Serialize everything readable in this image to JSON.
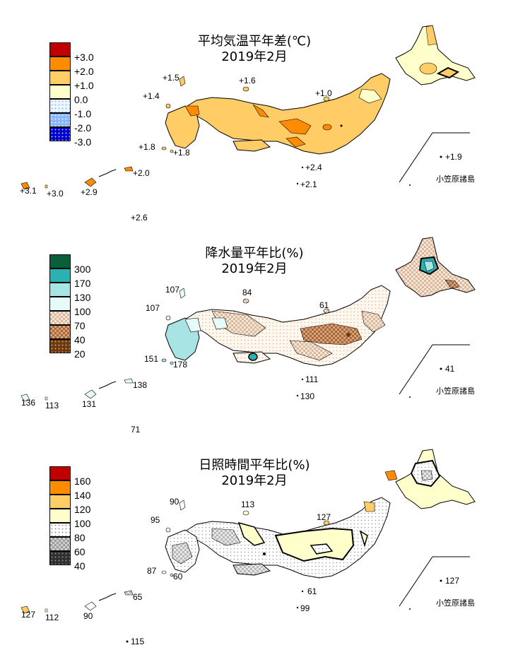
{
  "panels": [
    {
      "id": "temp",
      "title_line1": "平均気温平年差(℃)",
      "title_line2": "2019年2月",
      "legend": [
        {
          "label": "+3.0",
          "color": "#c00000"
        },
        {
          "label": "+2.0",
          "color": "#ff8c00"
        },
        {
          "label": "+1.0",
          "color": "#ffcc66"
        },
        {
          "label": "0.0",
          "color": "#ffffcc"
        },
        {
          "label": "-1.0",
          "color": "#d8ecff"
        },
        {
          "label": "-2.0",
          "color": "#8ab8ff"
        },
        {
          "label": "-3.0",
          "color": "#0000cc"
        }
      ],
      "values": {
        "okinawa_west": "+3.1",
        "okinawa_main": "+3.0",
        "amami": "+2.9",
        "kagoshima_south": "+2.0",
        "daito": "+2.6",
        "tsushima": "+1.5",
        "oki": "+1.6",
        "iki": "+1.4",
        "goto": "+1.8",
        "koshiki": "+1.8",
        "sado": "+1.0",
        "hachijo": "+2.4",
        "hachijo2": "+2.1",
        "ogasawara": "+1.9"
      },
      "ogasawara_label": "小笠原諸島"
    },
    {
      "id": "precip",
      "title_line1": "降水量平年比(%)",
      "title_line2": "2019年2月",
      "legend": [
        {
          "label": "300",
          "color": "#0b5e3a"
        },
        {
          "label": "170",
          "color": "#2bb1b1"
        },
        {
          "label": "130",
          "color": "#a8e4e4"
        },
        {
          "label": "100",
          "color": "#e6fafa"
        },
        {
          "label": "70",
          "color": "#f2dccb"
        },
        {
          "label": "40",
          "color": "#c88c5a"
        },
        {
          "label": "20",
          "color": "#6b3a10"
        }
      ],
      "values": {
        "okinawa_west": "136",
        "okinawa_main": "113",
        "amami": "131",
        "kagoshima_south": "138",
        "daito": "71",
        "tsushima": "107",
        "oki": "84",
        "iki": "107",
        "goto": "151",
        "koshiki": "178",
        "sado": "61",
        "hachijo": "111",
        "hachijo2": "130",
        "ogasawara": "41"
      },
      "ogasawara_label": "小笠原諸島"
    },
    {
      "id": "sun",
      "title_line1": "日照時間平年比(%)",
      "title_line2": "2019年2月",
      "legend": [
        {
          "label": "160",
          "color": "#c00000"
        },
        {
          "label": "140",
          "color": "#ff8c00"
        },
        {
          "label": "120",
          "color": "#ffcc66"
        },
        {
          "label": "100",
          "color": "#ffffcc"
        },
        {
          "label": "80",
          "color": "#f2f2f2"
        },
        {
          "label": "60",
          "color": "#a0a0a0"
        },
        {
          "label": "40",
          "color": "#303030"
        }
      ],
      "values": {
        "okinawa_west": "127",
        "okinawa_main": "112",
        "amami": "90",
        "kagoshima_south": "65",
        "daito": "115",
        "tsushima": "90",
        "oki": "113",
        "iki": "95",
        "goto": "87",
        "koshiki": "60",
        "sado": "127",
        "hachijo": "61",
        "hachijo2": "99",
        "ogasawara": "127"
      },
      "ogasawara_label": "小笠原諸島"
    }
  ]
}
